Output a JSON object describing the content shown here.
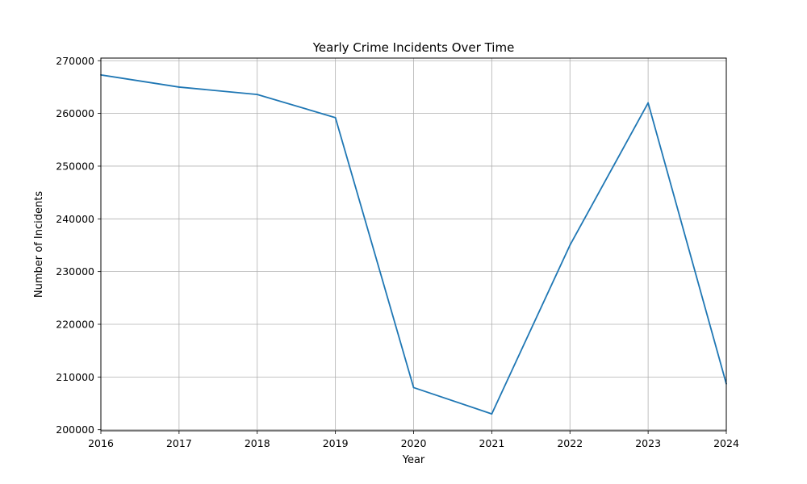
{
  "chart_data": {
    "type": "line",
    "title": "Yearly Crime Incidents Over Time",
    "xlabel": "Year",
    "ylabel": "Number of Incidents",
    "xlim": [
      2016,
      2024
    ],
    "ylim": [
      199800,
      270500
    ],
    "x_ticks": [
      "2016",
      "2017",
      "2018",
      "2019",
      "2020",
      "2021",
      "2022",
      "2023",
      "2024"
    ],
    "y_ticks": [
      "200000",
      "210000",
      "220000",
      "230000",
      "240000",
      "250000",
      "260000",
      "270000"
    ],
    "grid": true,
    "series": [
      {
        "color": "#1f77b4",
        "x": [
          2016,
          2017,
          2018,
          2019,
          2020,
          2021,
          2022,
          2023,
          2024
        ],
        "y": [
          267300,
          265000,
          263600,
          259200,
          208000,
          203000,
          235000,
          262000,
          208700
        ]
      }
    ]
  }
}
